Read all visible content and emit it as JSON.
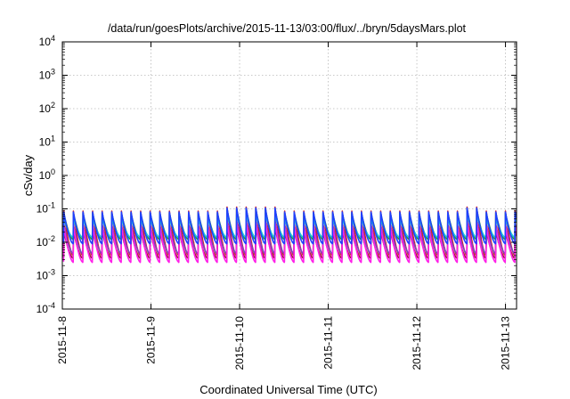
{
  "chart_data": {
    "type": "line",
    "title": "/data/run/goesPlots/archive/2015-11-13/03:00/flux/../bryn/5daysMars.plot",
    "xlabel": "Coordinated Universal Time (UTC)",
    "ylabel": "cSv/day",
    "x_scale": "time",
    "y_scale": "log",
    "xlim": [
      "2015-11-08",
      "2015-11-13T03:00"
    ],
    "ylim": [
      0.0001,
      10000
    ],
    "grid": true,
    "legend": "none",
    "x_ticks": [
      "2015-11-8",
      "2015-11-9",
      "2015-11-10",
      "2015-11-11",
      "2015-11-12",
      "2015-11-13"
    ],
    "y_ticks": [
      {
        "base": "10",
        "exp": "-4"
      },
      {
        "base": "10",
        "exp": "-3"
      },
      {
        "base": "10",
        "exp": "-2"
      },
      {
        "base": "10",
        "exp": "-1"
      },
      {
        "base": "10",
        "exp": "0"
      },
      {
        "base": "10",
        "exp": "1"
      },
      {
        "base": "10",
        "exp": "2"
      },
      {
        "base": "10",
        "exp": "3"
      },
      {
        "base": "10",
        "exp": "4"
      }
    ],
    "cycle_hours": 2.6,
    "series": [
      {
        "color": "#d62020",
        "peak": 0.085,
        "trough": 0.004
      },
      {
        "color": "#22a032",
        "peak": 0.075,
        "trough": 0.012
      },
      {
        "color": "#1ec8d8",
        "peak": 0.05,
        "trough": 0.014
      },
      {
        "color": "#8040c0",
        "peak": 0.035,
        "trough": 0.0045
      },
      {
        "color": "#a01838",
        "peak": 0.022,
        "trough": 0.0033
      },
      {
        "color": "#ff20e8",
        "peak": 0.03,
        "trough": 0.0025
      },
      {
        "color": "#2040ff",
        "peak": 0.08,
        "trough": 0.009
      }
    ]
  }
}
